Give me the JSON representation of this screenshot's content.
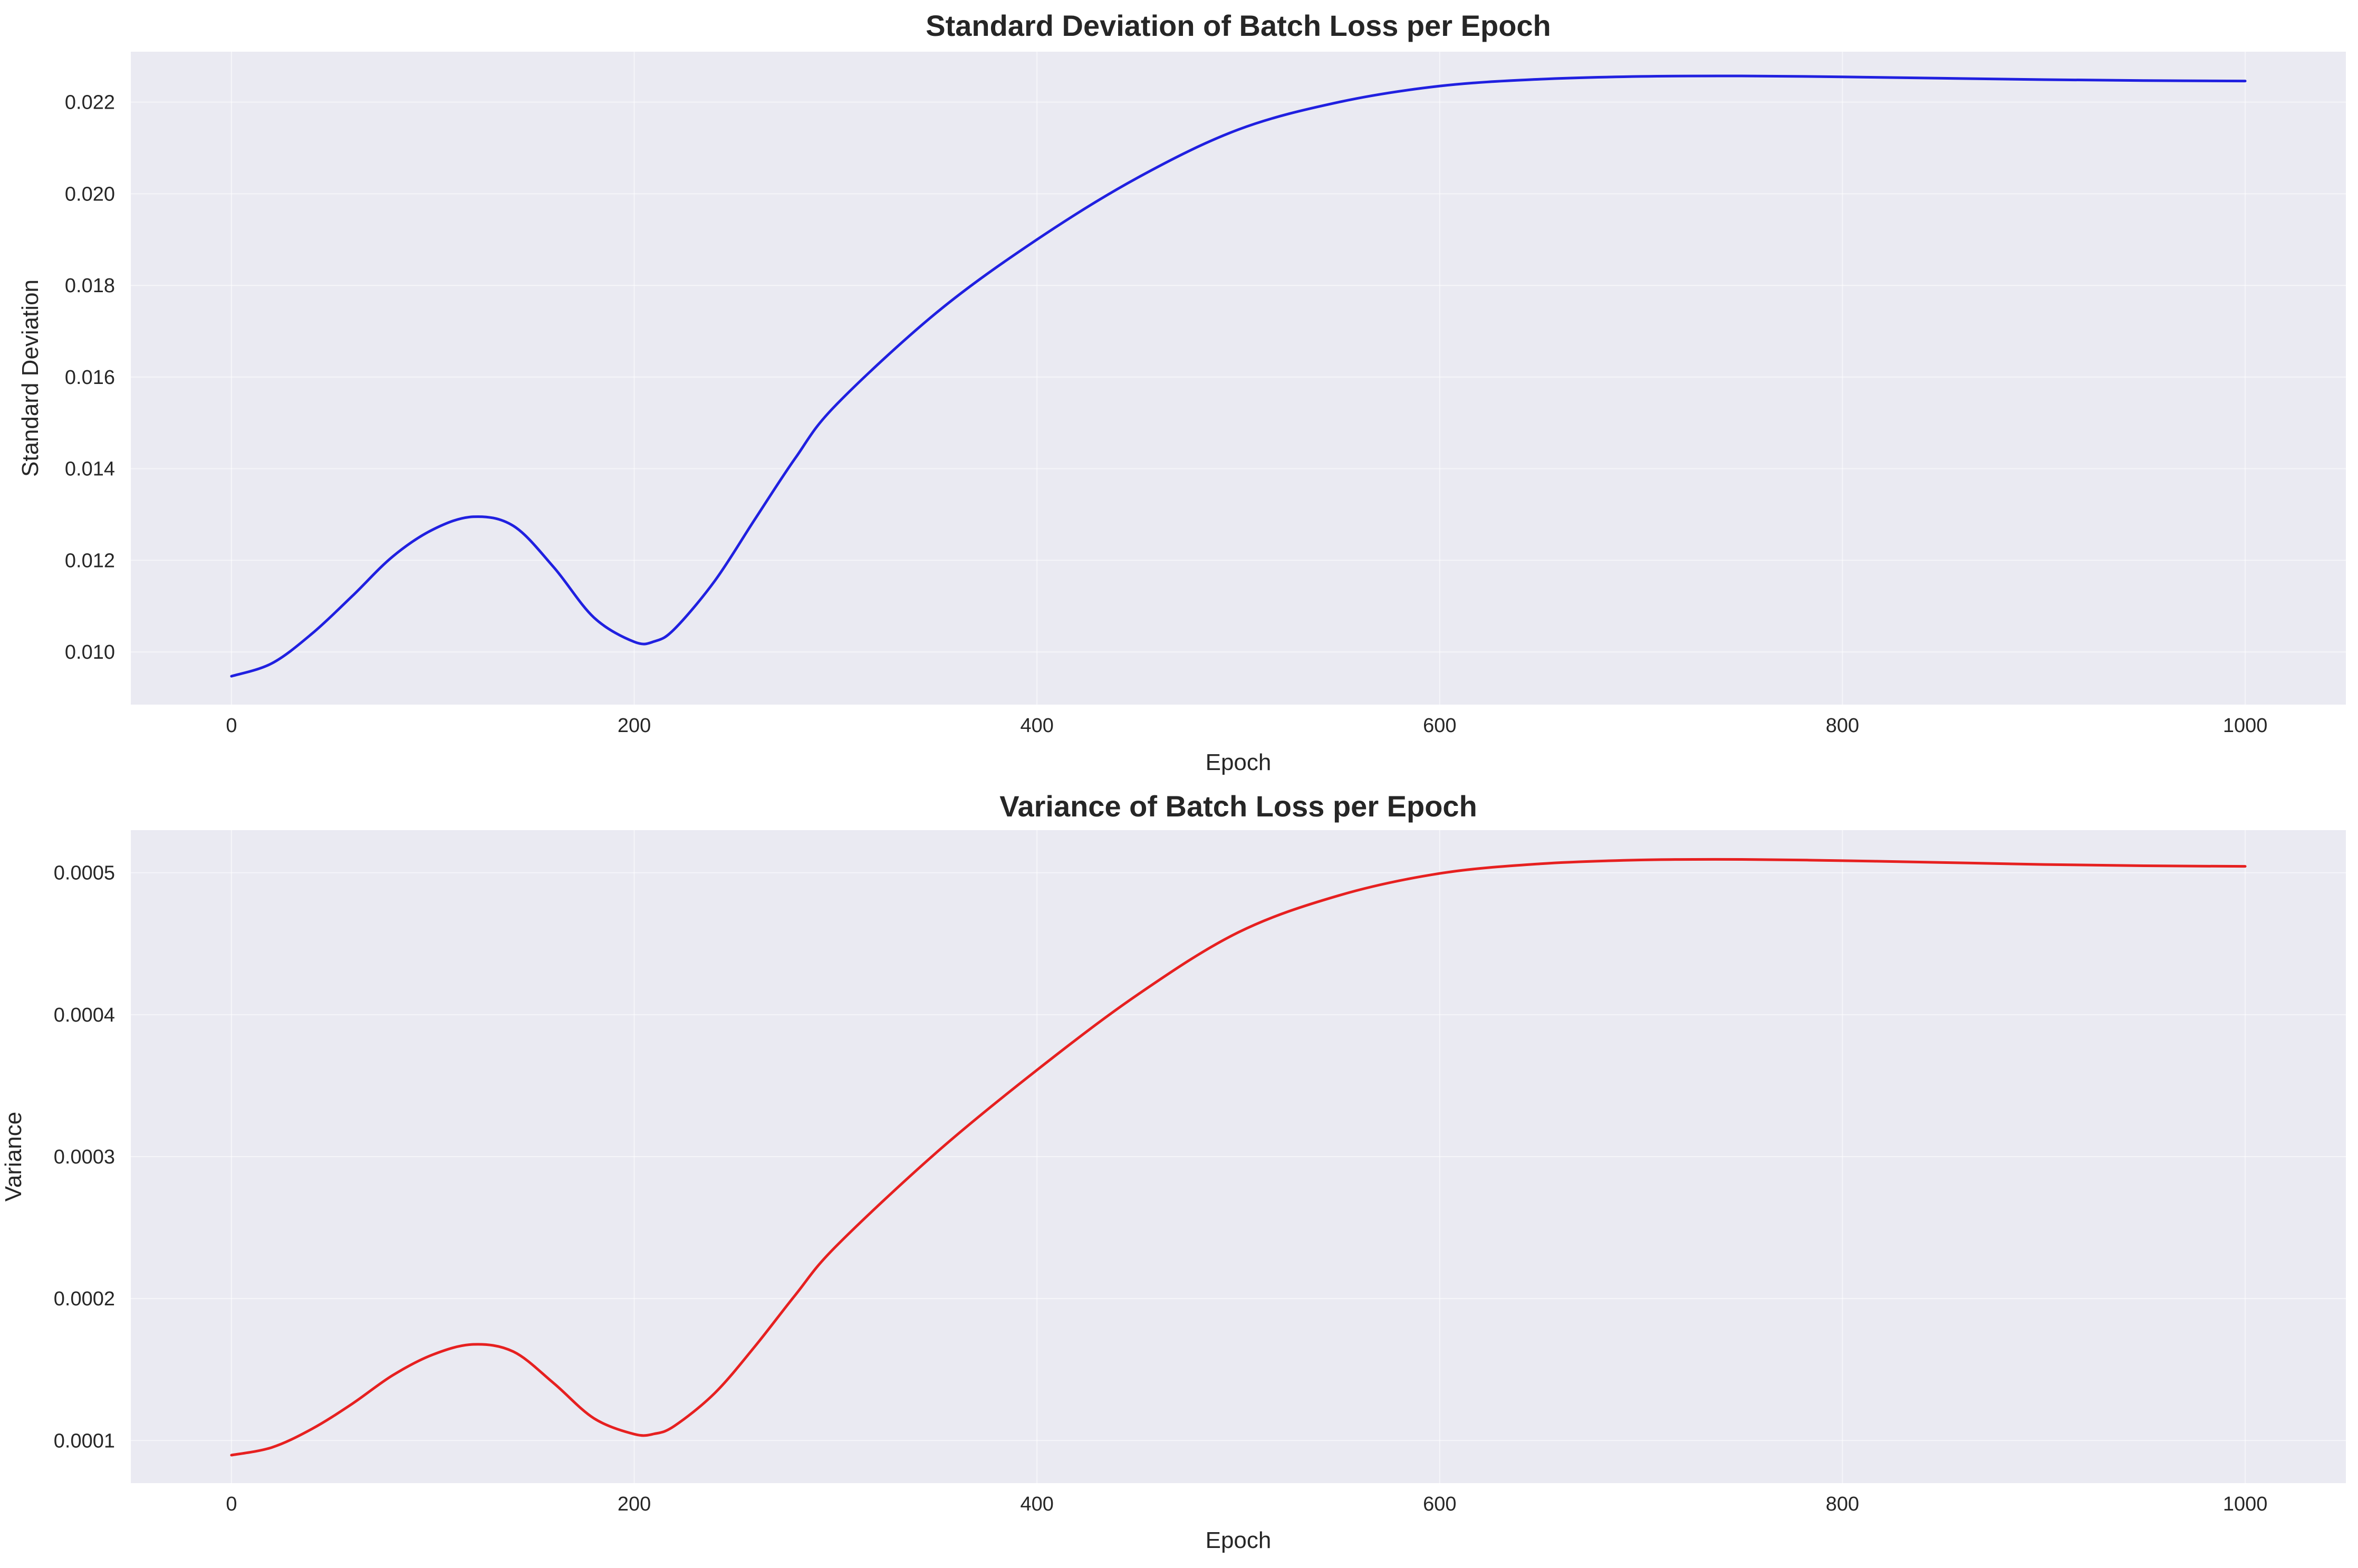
{
  "chart_data": [
    {
      "type": "line",
      "title": "Standard Deviation of Batch Loss per Epoch",
      "xlabel": "Epoch",
      "ylabel": "Standard Deviation",
      "xlim": [
        -50,
        1050
      ],
      "ylim": [
        0.00885,
        0.0231
      ],
      "grid": true,
      "x_ticks": [
        0,
        200,
        400,
        600,
        800,
        1000
      ],
      "x_tick_labels": [
        "0",
        "200",
        "400",
        "600",
        "800",
        "1000"
      ],
      "y_ticks": [
        0.01,
        0.012,
        0.014,
        0.016,
        0.018,
        0.02,
        0.022
      ],
      "y_tick_labels": [
        "0.010",
        "0.012",
        "0.014",
        "0.016",
        "0.018",
        "0.020",
        "0.022"
      ],
      "series": [
        {
          "color": "#2020e0",
          "x": [
            0,
            20,
            40,
            60,
            80,
            100,
            120,
            140,
            160,
            180,
            200,
            210,
            220,
            240,
            260,
            280,
            300,
            350,
            400,
            450,
            500,
            550,
            600,
            650,
            700,
            750,
            800,
            850,
            900,
            950,
            1000
          ],
          "y": [
            0.00947,
            0.00975,
            0.0104,
            0.01122,
            0.01208,
            0.01267,
            0.01295,
            0.01275,
            0.01185,
            0.01075,
            0.01022,
            0.01023,
            0.0105,
            0.01155,
            0.0129,
            0.01423,
            0.01538,
            0.0174,
            0.019,
            0.02035,
            0.0214,
            0.022,
            0.02235,
            0.0225,
            0.02256,
            0.02257,
            0.02255,
            0.02252,
            0.02249,
            0.02247,
            0.02246
          ]
        }
      ]
    },
    {
      "type": "line",
      "title": "Variance of Batch Loss per Epoch",
      "xlabel": "Epoch",
      "ylabel": "Variance",
      "xlim": [
        -50,
        1050
      ],
      "ylim": [
        7e-05,
        0.00053
      ],
      "grid": true,
      "x_ticks": [
        0,
        200,
        400,
        600,
        800,
        1000
      ],
      "x_tick_labels": [
        "0",
        "200",
        "400",
        "600",
        "800",
        "1000"
      ],
      "y_ticks": [
        0.0001,
        0.0002,
        0.0003,
        0.0004,
        0.0005
      ],
      "y_tick_labels": [
        "0.0001",
        "0.0002",
        "0.0003",
        "0.0004",
        "0.0005"
      ],
      "series": [
        {
          "color": "#e62020",
          "x": [
            0,
            20,
            40,
            60,
            80,
            100,
            120,
            140,
            160,
            180,
            200,
            210,
            220,
            240,
            260,
            280,
            300,
            350,
            400,
            450,
            500,
            550,
            600,
            650,
            700,
            750,
            800,
            850,
            900,
            950,
            1000
          ],
          "y": [
            8.97e-05,
            9.51e-05,
            0.0001082,
            0.0001259,
            0.0001459,
            0.0001605,
            0.0001677,
            0.0001626,
            0.0001404,
            0.0001156,
            0.0001045,
            0.0001047,
            0.0001103,
            0.0001334,
            0.0001664,
            0.0002025,
            0.0002365,
            0.0003028,
            0.000361,
            0.0004141,
            0.000458,
            0.000484,
            0.0004995,
            0.0005063,
            0.000509,
            0.0005094,
            0.0005085,
            0.0005072,
            0.0005058,
            0.0005049,
            0.0005045
          ]
        }
      ]
    }
  ]
}
